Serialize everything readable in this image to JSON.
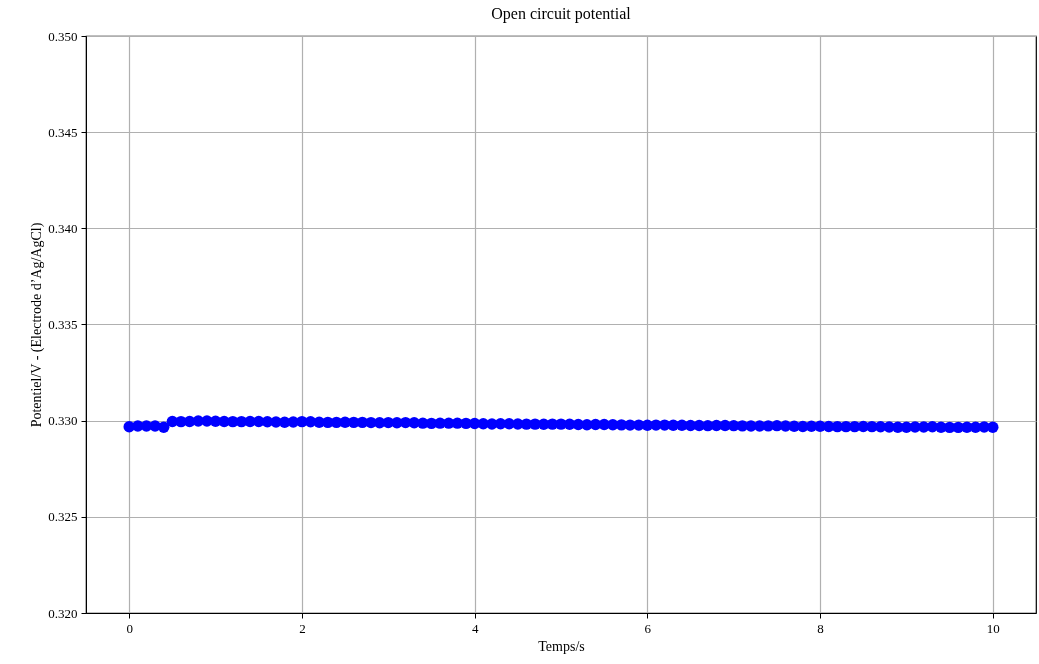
{
  "chart_data": {
    "type": "scatter",
    "title": "Open circuit potential",
    "xlabel": "Temps/s",
    "ylabel": "Potentiel/V - (Electrode d’Ag/AgCl)",
    "x": [
      0,
      0.1,
      0.2,
      0.3,
      0.4,
      0.5,
      0.6,
      0.7,
      0.8,
      0.9,
      1,
      1.1,
      1.2,
      1.3,
      1.4,
      1.5,
      1.6,
      1.7,
      1.8,
      1.9,
      2,
      2.1,
      2.2,
      2.3,
      2.4,
      2.5,
      2.6,
      2.7,
      2.8,
      2.9,
      3,
      3.1,
      3.2,
      3.3,
      3.4,
      3.5,
      3.6,
      3.7,
      3.8,
      3.9,
      4,
      4.1,
      4.2,
      4.3,
      4.4,
      4.5,
      4.6,
      4.7,
      4.8,
      4.9,
      5,
      5.1,
      5.2,
      5.3,
      5.4,
      5.5,
      5.6,
      5.7,
      5.8,
      5.9,
      6,
      6.1,
      6.2,
      6.3,
      6.4,
      6.5,
      6.6,
      6.7,
      6.8,
      6.9,
      7,
      7.1,
      7.2,
      7.3,
      7.4,
      7.5,
      7.6,
      7.7,
      7.8,
      7.9,
      8,
      8.1,
      8.2,
      8.3,
      8.4,
      8.5,
      8.6,
      8.7,
      8.8,
      8.9,
      9,
      9.1,
      9.2,
      9.3,
      9.4,
      9.5,
      9.6,
      9.7,
      9.8,
      9.9,
      10
    ],
    "series": [
      {
        "color": "#0000ff",
        "values": [
          0.32968,
          0.32972,
          0.32972,
          0.32972,
          0.32966,
          0.32996,
          0.32995,
          0.32996,
          0.32998,
          0.32998,
          0.32997,
          0.32996,
          0.32995,
          0.32995,
          0.32996,
          0.32996,
          0.32994,
          0.32993,
          0.32992,
          0.32993,
          0.32995,
          0.32994,
          0.32992,
          0.32991,
          0.32991,
          0.32992,
          0.32991,
          0.32991,
          0.3299,
          0.32989,
          0.3299,
          0.32989,
          0.3299,
          0.32989,
          0.32987,
          0.32986,
          0.32987,
          0.32987,
          0.32987,
          0.32986,
          0.32985,
          0.32984,
          0.32983,
          0.32984,
          0.32984,
          0.32983,
          0.32982,
          0.32982,
          0.32981,
          0.32982,
          0.32982,
          0.32981,
          0.3298,
          0.32979,
          0.3298,
          0.3298,
          0.32979,
          0.32978,
          0.32977,
          0.32977,
          0.32976,
          0.32977,
          0.32977,
          0.32976,
          0.32976,
          0.32975,
          0.32975,
          0.32974,
          0.32975,
          0.32975,
          0.32974,
          0.32973,
          0.32972,
          0.32972,
          0.32973,
          0.32974,
          0.32972,
          0.32971,
          0.3297,
          0.32971,
          0.32971,
          0.3297,
          0.32969,
          0.32969,
          0.32969,
          0.3297,
          0.32969,
          0.32968,
          0.32967,
          0.32966,
          0.32966,
          0.32967,
          0.32967,
          0.32968,
          0.32966,
          0.32965,
          0.32965,
          0.32966,
          0.32966,
          0.32967,
          0.32966
        ]
      }
    ],
    "xlim": [
      -0.5,
      10.5
    ],
    "xticks": [
      0,
      2,
      4,
      6,
      8,
      10
    ],
    "ylim": [
      0.32,
      0.35
    ],
    "yticks": [
      {
        "value": 0.32,
        "label": "0.320"
      },
      0.325,
      {
        "value": 0.33,
        "label": "0.330"
      },
      0.335,
      {
        "value": 0.34,
        "label": "0.340"
      },
      0.345,
      {
        "value": 0.35,
        "label": "0.350"
      }
    ],
    "grid": true,
    "marker": "circle"
  }
}
